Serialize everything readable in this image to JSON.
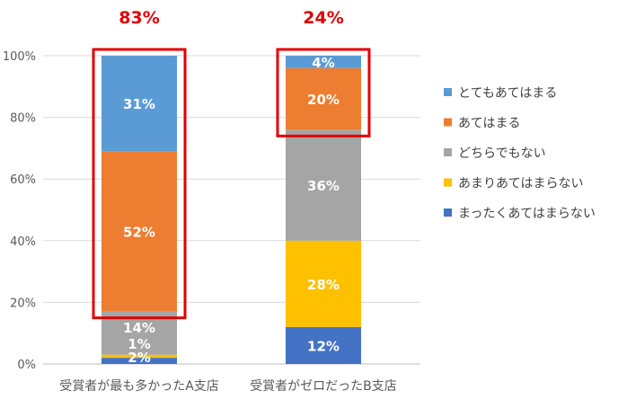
{
  "chart_data": {
    "type": "bar",
    "stacked": true,
    "categories": [
      "受賞者が最も多かったA支店",
      "受賞者がゼロだったB支店"
    ],
    "ylim": [
      0,
      100
    ],
    "y_ticks": [
      "0%",
      "20%",
      "40%",
      "60%",
      "80%",
      "100%"
    ],
    "grid": true,
    "legend_position": "right",
    "series": [
      {
        "name": "まったくあてはまらない",
        "color": "#4472C4",
        "values": [
          2,
          12
        ],
        "labels": [
          "2%",
          "12%"
        ]
      },
      {
        "name": "あまりあてはまらない",
        "color": "#FFC000",
        "values": [
          1,
          28
        ],
        "labels": [
          "1%",
          "28%"
        ]
      },
      {
        "name": "どちらでもない",
        "color": "#A5A5A5",
        "values": [
          14,
          36
        ],
        "labels": [
          "14%",
          "36%"
        ]
      },
      {
        "name": "あてはまる",
        "color": "#ED7D31",
        "values": [
          52,
          20
        ],
        "labels": [
          "52%",
          "20%"
        ]
      },
      {
        "name": "とてもあてはまる",
        "color": "#5B9BD5",
        "values": [
          31,
          4
        ],
        "labels": [
          "31%",
          "4%"
        ]
      }
    ],
    "annotations": [
      {
        "text": "83%",
        "category": 0,
        "series_range": [
          3,
          4
        ],
        "color": "#E00000"
      },
      {
        "text": "24%",
        "category": 1,
        "series_range": [
          3,
          4
        ],
        "color": "#E00000"
      }
    ]
  }
}
